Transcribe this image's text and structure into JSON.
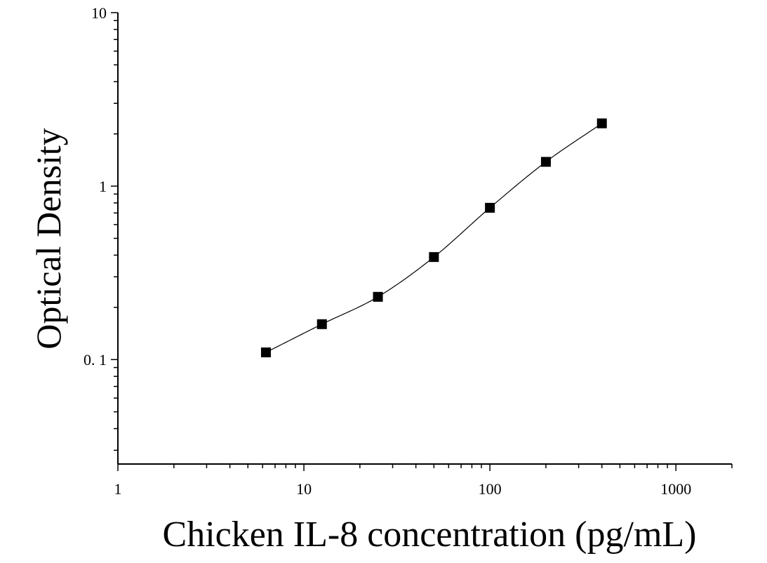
{
  "chart_data": {
    "type": "scatter",
    "title": "",
    "xlabel": "Chicken IL-8 concentration (pg/mL)",
    "ylabel": "Optical Density",
    "x_scale": "log",
    "y_scale": "log",
    "xlim": [
      1,
      2000
    ],
    "ylim": [
      0.025,
      10
    ],
    "x_ticks": [
      {
        "value": 1,
        "label": "1"
      },
      {
        "value": 10,
        "label": "10"
      },
      {
        "value": 100,
        "label": "100"
      },
      {
        "value": 1000,
        "label": "1000"
      }
    ],
    "y_ticks": [
      {
        "value": 0.1,
        "label": "0. 1"
      },
      {
        "value": 1,
        "label": "1"
      },
      {
        "value": 10,
        "label": "10"
      }
    ],
    "grid": false,
    "legend": "none",
    "marker": "square",
    "marker_color": "#000000",
    "line_color": "#000000",
    "series": [
      {
        "x": [
          6.25,
          12.5,
          25,
          50,
          100,
          200,
          400
        ],
        "y": [
          0.11,
          0.16,
          0.23,
          0.39,
          0.75,
          1.38,
          2.3
        ]
      }
    ]
  }
}
